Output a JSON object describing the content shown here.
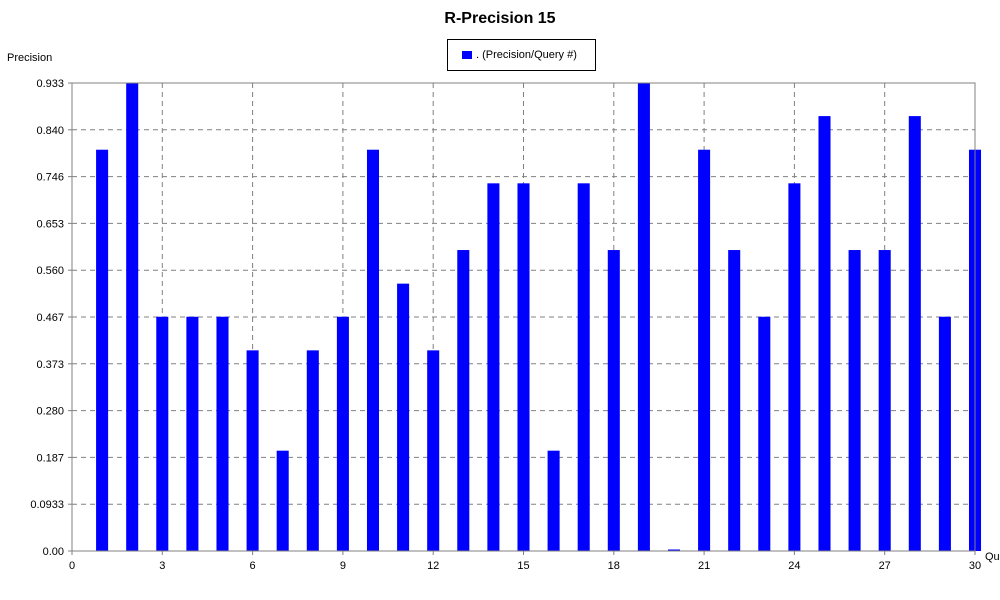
{
  "chart_data": {
    "type": "bar",
    "title": "R-Precision 15",
    "ylabel": "Precision",
    "xlabel": "Qu",
    "legend": {
      "label": ". (Precision/Query #)",
      "placement": "top-center"
    },
    "ylim": [
      0,
      0.933
    ],
    "xlim": [
      0,
      30
    ],
    "yticks": [
      "0.00",
      "0.0933",
      "0.187",
      "0.280",
      "0.373",
      "0.467",
      "0.560",
      "0.653",
      "0.746",
      "0.840",
      "0.933"
    ],
    "xticks": [
      "0",
      "3",
      "6",
      "9",
      "12",
      "15",
      "18",
      "21",
      "24",
      "27",
      "30"
    ],
    "grid": true,
    "bar_color": "#0000ff",
    "x": [
      1,
      2,
      3,
      4,
      5,
      6,
      7,
      8,
      9,
      10,
      11,
      12,
      13,
      14,
      15,
      16,
      17,
      18,
      19,
      20,
      21,
      22,
      23,
      24,
      25,
      26,
      27,
      28,
      29,
      30
    ],
    "values": [
      0.8,
      0.933,
      0.467,
      0.467,
      0.467,
      0.4,
      0.2,
      0.4,
      0.467,
      0.8,
      0.533,
      0.4,
      0.6,
      0.733,
      0.733,
      0.2,
      0.733,
      0.6,
      0.933,
      0.0,
      0.8,
      0.6,
      0.467,
      0.733,
      0.867,
      0.6,
      0.6,
      0.867,
      0.467,
      0.8
    ]
  }
}
